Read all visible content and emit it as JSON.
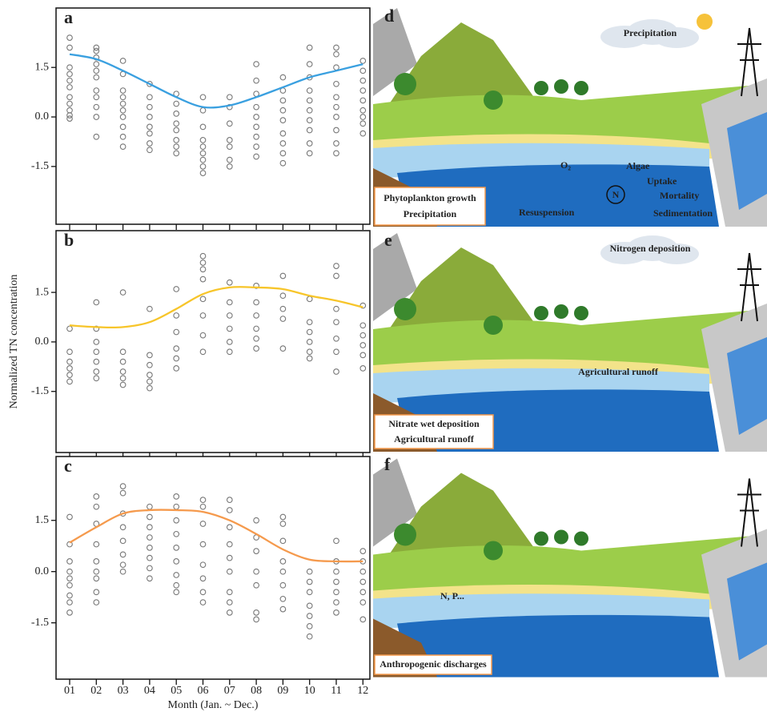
{
  "chart_data": [
    {
      "type": "scatter",
      "panel_label": "a",
      "ylim": [
        -3.25,
        3.3
      ],
      "yticks": [
        -1.5,
        {
          "value": 0,
          "label": "0.0"
        },
        1.5
      ],
      "scatter": {
        "color": "#777777",
        "values": [
          [
            2.4,
            2.1,
            1.5,
            1.3,
            1.1,
            0.9,
            0.6,
            0.4,
            0.2,
            0.05,
            -0.05
          ],
          [
            2.1,
            2.0,
            1.8,
            1.6,
            1.4,
            1.2,
            0.8,
            0.6,
            0.3,
            0.0,
            -0.6
          ],
          [
            1.7,
            1.3,
            0.8,
            0.6,
            0.4,
            0.2,
            0.0,
            -0.3,
            -0.6,
            -0.9
          ],
          [
            1.0,
            0.6,
            0.3,
            0.0,
            -0.3,
            -0.5,
            -0.8,
            -1.0
          ],
          [
            0.7,
            0.4,
            0.1,
            -0.2,
            -0.4,
            -0.7,
            -0.9,
            -1.1
          ],
          [
            0.6,
            0.2,
            -0.3,
            -0.7,
            -0.9,
            -1.1,
            -1.3,
            -1.5,
            -1.7
          ],
          [
            0.6,
            0.3,
            -0.2,
            -0.7,
            -0.9,
            -1.3,
            -1.5
          ],
          [
            1.6,
            1.1,
            0.7,
            0.3,
            0.0,
            -0.3,
            -0.6,
            -0.9,
            -1.2
          ],
          [
            1.2,
            0.8,
            0.5,
            0.2,
            -0.1,
            -0.5,
            -0.8,
            -1.1,
            -1.4
          ],
          [
            2.1,
            1.6,
            1.2,
            0.8,
            0.5,
            0.2,
            -0.1,
            -0.4,
            -0.8,
            -1.1
          ],
          [
            2.1,
            1.9,
            1.5,
            1.0,
            0.6,
            0.3,
            0.0,
            -0.4,
            -0.8,
            -1.1
          ],
          [
            1.7,
            1.4,
            1.1,
            0.8,
            0.5,
            0.2,
            0.0,
            -0.2,
            -0.5
          ]
        ]
      },
      "trend": {
        "color": "#3aa0e0",
        "values": [
          1.9,
          1.75,
          1.4,
          1.0,
          0.6,
          0.3,
          0.35,
          0.6,
          0.9,
          1.2,
          1.4,
          1.6
        ]
      }
    },
    {
      "type": "scatter",
      "panel_label": "b",
      "ylabel": "Normalized TN concentration",
      "ylim": [
        -3.35,
        3.37
      ],
      "yticks": [
        -1.5,
        {
          "value": 0,
          "label": "0.0"
        },
        1.5
      ],
      "scatter": {
        "color": "#777777",
        "values": [
          [
            0.4,
            -0.3,
            -0.6,
            -0.8,
            -1.0,
            -1.2
          ],
          [
            1.2,
            0.4,
            0.0,
            -0.3,
            -0.6,
            -0.9,
            -1.1
          ],
          [
            1.5,
            -0.3,
            -0.6,
            -0.9,
            -1.1,
            -1.3
          ],
          [
            1.0,
            -0.4,
            -0.7,
            -1.0,
            -1.2,
            -1.4
          ],
          [
            1.6,
            0.8,
            0.3,
            -0.2,
            -0.5,
            -0.8
          ],
          [
            2.6,
            2.4,
            2.2,
            1.9,
            1.3,
            0.8,
            0.2,
            -0.3
          ],
          [
            1.8,
            1.2,
            0.8,
            0.4,
            0.0,
            -0.3
          ],
          [
            1.7,
            1.2,
            0.8,
            0.4,
            0.1,
            -0.2
          ],
          [
            2.0,
            1.4,
            1.0,
            0.7,
            -0.2
          ],
          [
            1.3,
            0.6,
            0.3,
            0.0,
            -0.3,
            -0.5
          ],
          [
            2.3,
            2.0,
            1.0,
            0.6,
            0.1,
            -0.3,
            -0.9
          ],
          [
            1.1,
            0.5,
            0.2,
            -0.1,
            -0.4,
            -0.8
          ]
        ]
      },
      "trend": {
        "color": "#f7c52a",
        "values": [
          0.5,
          0.45,
          0.45,
          0.6,
          1.0,
          1.45,
          1.65,
          1.65,
          1.6,
          1.4,
          1.25,
          1.05
        ]
      }
    },
    {
      "type": "scatter",
      "panel_label": "c",
      "xlabel": "Month (Jan. ~ Dec.)",
      "ylim": [
        -3.15,
        3.37
      ],
      "yticks": [
        -1.5,
        {
          "value": 0,
          "label": "0.0"
        },
        1.5
      ],
      "categories": [
        "01",
        "02",
        "03",
        "04",
        "05",
        "06",
        "07",
        "08",
        "09",
        "10",
        "11",
        "12"
      ],
      "scatter": {
        "color": "#777777",
        "values": [
          [
            1.6,
            0.8,
            0.3,
            0.0,
            -0.2,
            -0.4,
            -0.7,
            -0.9,
            -1.2
          ],
          [
            2.2,
            1.9,
            1.4,
            0.8,
            0.3,
            0.0,
            -0.2,
            -0.6,
            -0.9
          ],
          [
            2.5,
            2.3,
            1.7,
            1.3,
            0.9,
            0.5,
            0.2,
            0.0
          ],
          [
            1.9,
            1.6,
            1.3,
            1.0,
            0.7,
            0.4,
            0.1,
            -0.2
          ],
          [
            2.2,
            1.9,
            1.5,
            1.1,
            0.7,
            0.3,
            -0.1,
            -0.4,
            -0.6
          ],
          [
            2.1,
            1.9,
            1.4,
            0.8,
            0.2,
            -0.2,
            -0.6,
            -0.9
          ],
          [
            2.1,
            1.8,
            1.3,
            0.8,
            0.4,
            0.0,
            -0.6,
            -0.9,
            -1.2
          ],
          [
            1.5,
            1.0,
            0.6,
            0.0,
            -0.4,
            -1.2,
            -1.4
          ],
          [
            1.6,
            1.4,
            0.9,
            0.3,
            0.0,
            -0.4,
            -0.8,
            -1.1
          ],
          [
            0.0,
            -0.3,
            -0.6,
            -1.0,
            -1.3,
            -1.6,
            -1.9
          ],
          [
            0.9,
            0.3,
            0.0,
            -0.3,
            -0.6,
            -0.9,
            -1.2
          ],
          [
            0.6,
            0.3,
            0.0,
            -0.3,
            -0.6,
            -0.9,
            -1.4
          ]
        ]
      },
      "trend": {
        "color": "#f59a4d",
        "values": [
          0.85,
          1.3,
          1.7,
          1.8,
          1.8,
          1.75,
          1.5,
          1.1,
          0.65,
          0.35,
          0.3,
          0.3
        ]
      }
    }
  ],
  "illustrations": [
    {
      "panel_label": "d",
      "annotations": [
        "Precipitation",
        "O₂",
        "Algae",
        "Uptake",
        "N",
        "Mortality",
        "Resuspension",
        "Sedimentation"
      ],
      "caption": [
        "Phytoplankton growth",
        "Precipitation"
      ]
    },
    {
      "panel_label": "e",
      "annotations": [
        "Nitrogen deposition",
        "Agricultural runoff"
      ],
      "caption": [
        "Nitrate wet deposition",
        "Agricultural runoff"
      ]
    },
    {
      "panel_label": "f",
      "annotations": [
        "N, P..."
      ],
      "caption": [
        "Anthropogenic discharges"
      ]
    }
  ]
}
